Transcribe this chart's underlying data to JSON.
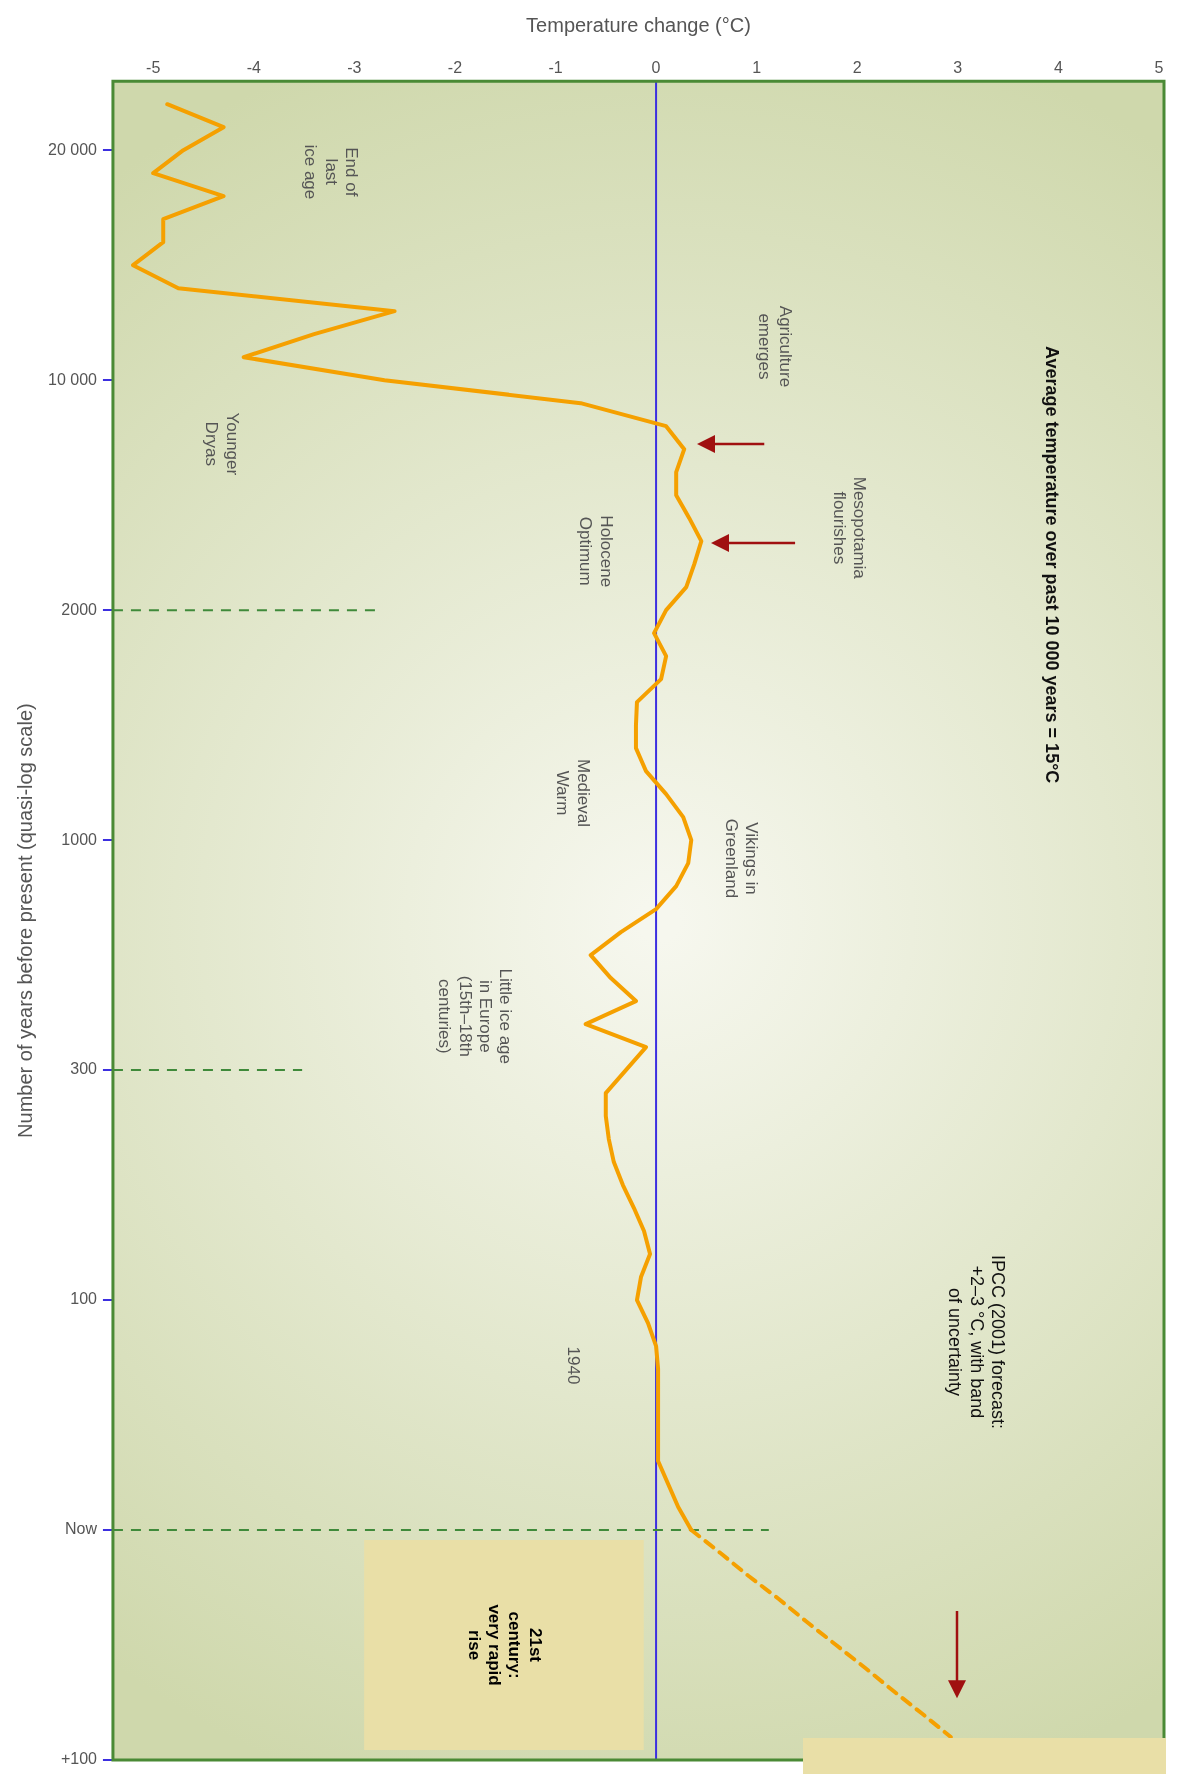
{
  "chart_data": {
    "type": "line",
    "orientation": "horizontal",
    "title": "Average temperature over past 10 000 years = 15°C",
    "xlabel": "Temperature change (°C)",
    "ylabel": "Number of years before present (quasi-log scale)",
    "categories": [
      null,
      null,
      null,
      "20 000",
      null,
      null,
      null,
      null,
      null,
      null,
      null,
      null,
      null,
      "10 000",
      null,
      null,
      null,
      null,
      null,
      null,
      null,
      null,
      null,
      "2000",
      null,
      null,
      null,
      null,
      null,
      null,
      null,
      null,
      null,
      "1000",
      null,
      null,
      null,
      null,
      null,
      null,
      null,
      null,
      null,
      "300",
      null,
      null,
      null,
      null,
      null,
      null,
      null,
      null,
      null,
      "100",
      null,
      null,
      null,
      null,
      null,
      null,
      null,
      null,
      null,
      "Now",
      null,
      null,
      null,
      null,
      null,
      null,
      null,
      null,
      null,
      "+100"
    ],
    "series": [
      {
        "color": "#f5a000",
        "line_style": "solid",
        "values": [
          null,
          -4.86,
          -4.3,
          -4.7,
          -5.0,
          -4.3,
          -4.9,
          -4.9,
          -5.2,
          -4.75,
          -2.6,
          -3.4,
          -4.1,
          -2.7,
          -0.75,
          0.1,
          0.28,
          0.2,
          0.2,
          0.33,
          0.45,
          0.38,
          0.3,
          0.1,
          -0.02,
          0.1,
          0.05,
          -0.19,
          -0.2,
          -0.2,
          -0.1,
          0.1,
          0.27,
          0.35,
          0.32,
          0.2,
          0,
          -0.35,
          -0.65,
          -0.45,
          -0.2,
          -0.7,
          -0.1,
          -0.3,
          -0.5,
          -0.5,
          -0.47,
          -0.42,
          -0.33,
          -0.22,
          -0.12,
          -0.06,
          -0.15,
          -0.19,
          -0.08,
          0,
          0.02,
          0.02,
          0.02,
          0.02,
          0.02,
          0.12,
          0.22,
          0.35,
          null,
          null,
          null,
          null,
          null,
          null,
          null,
          null,
          null,
          null
        ]
      },
      {
        "color": "#f5a000",
        "line_style": "dashed",
        "values": [
          null,
          null,
          null,
          null,
          null,
          null,
          null,
          null,
          null,
          null,
          null,
          null,
          null,
          null,
          null,
          null,
          null,
          null,
          null,
          null,
          null,
          null,
          null,
          null,
          null,
          null,
          null,
          null,
          null,
          null,
          null,
          null,
          null,
          null,
          null,
          null,
          null,
          null,
          null,
          null,
          null,
          null,
          null,
          null,
          null,
          null,
          null,
          null,
          null,
          null,
          null,
          null,
          null,
          null,
          null,
          null,
          null,
          null,
          null,
          null,
          null,
          null,
          null,
          0.35,
          0.64,
          0.92,
          1.22,
          1.5,
          1.79,
          2.08,
          2.36,
          2.65,
          2.93,
          null
        ]
      }
    ],
    "xlim": [
      -5.4,
      5.05
    ],
    "xticks": [
      -5,
      -4,
      -3,
      -2,
      -1,
      0,
      1,
      2,
      3,
      4,
      5
    ],
    "ref_lines": [
      {
        "axis": "x",
        "value": 0,
        "color": "#3c2fe0",
        "line_style": "solid"
      },
      {
        "axis": "y",
        "value": "2000",
        "color": "#3f8a3a",
        "line_style": "dashed"
      },
      {
        "axis": "y",
        "value": "300",
        "color": "#3f8a3a",
        "line_style": "dashed"
      },
      {
        "axis": "y",
        "value": "Now",
        "color": "#3f8a3a",
        "line_style": "dashed"
      }
    ],
    "bands": [
      {
        "axis": "y",
        "from": "Now",
        "to": "+100",
        "label": "21st\ncentury:\nvery rapid\nrise",
        "color": "#e9dfa7"
      }
    ],
    "annotations": [
      "End of\nlast\nice age",
      "Agriculture\nemerges",
      "Mesopotamia\nflourishes",
      "Younger\nDryas",
      "Holocene\nOptimum",
      "Vikings in\nGreenland",
      "Medieval\nWarm",
      "Little ice age\nin Europe\n(15th–18th\ncenturies)",
      "1940",
      "IPCC (2001) forecast:\n+2–3 °C, with band\nof uncertainty"
    ]
  }
}
